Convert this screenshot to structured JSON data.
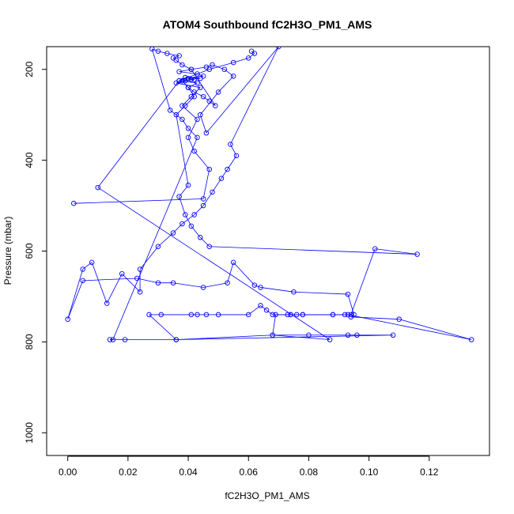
{
  "chart_data": {
    "type": "scatter",
    "title": "ATOM4 Southbound fC2H3O_PM1_AMS",
    "xlabel": "fC2H3O_PM1_AMS",
    "ylabel": "Pressure (mbar)",
    "xlim": [
      -0.007,
      0.14
    ],
    "ylim": [
      1050,
      150
    ],
    "y_reversed": true,
    "x_ticks": [
      0.0,
      0.02,
      0.04,
      0.06,
      0.08,
      0.1,
      0.12
    ],
    "x_tick_labels": [
      "0.00",
      "0.02",
      "0.04",
      "0.06",
      "0.08",
      "0.10",
      "0.12"
    ],
    "y_ticks": [
      200,
      400,
      600,
      800,
      1000
    ],
    "y_tick_labels": [
      "200",
      "400",
      "600",
      "800",
      "1000"
    ],
    "grid": false,
    "color": "#0000ff",
    "marker": "open-circle",
    "connected": true,
    "series": [
      {
        "x": [
          0.002,
          0.045,
          0.047,
          0.042,
          0.04,
          0.043,
          0.038,
          0.041,
          0.044,
          0.036,
          0.039,
          0.042,
          0.04,
          0.045,
          0.043,
          0.037,
          0.041,
          0.046,
          0.048,
          0.052,
          0.055,
          0.05,
          0.044,
          0.046,
          0.07,
          0.054,
          0.056,
          0.053,
          0.051,
          0.048,
          0.045,
          0.042,
          0.038,
          0.035,
          0.03,
          0.024,
          0.024,
          0.018,
          0.013,
          0.008,
          0.005,
          0.0,
          0.005,
          0.023,
          0.03,
          0.035,
          0.045,
          0.053,
          0.055,
          0.062,
          0.064,
          0.075,
          0.093,
          0.095,
          0.094,
          0.11,
          0.134,
          0.093,
          0.088,
          0.078,
          0.074,
          0.069,
          0.068,
          0.08,
          0.093,
          0.096,
          0.108,
          0.036,
          0.027,
          0.031,
          0.041,
          0.043,
          0.046,
          0.05,
          0.06,
          0.064,
          0.066,
          0.068,
          0.073,
          0.074,
          0.076,
          0.078,
          0.088,
          0.092,
          0.094,
          0.102,
          0.116,
          0.047,
          0.044,
          0.041,
          0.039,
          0.037,
          0.04,
          0.036,
          0.039,
          0.042,
          0.04,
          0.038,
          0.041,
          0.044,
          0.039,
          0.037,
          0.043,
          0.04,
          0.042,
          0.045,
          0.047,
          0.049,
          0.041,
          0.038,
          0.036,
          0.035,
          0.037,
          0.033,
          0.03,
          0.028,
          0.034,
          0.038,
          0.04,
          0.043,
          0.015,
          0.014,
          0.019,
          0.036,
          0.068,
          0.087,
          0.01,
          0.037,
          0.047,
          0.055,
          0.06,
          0.062,
          0.061
        ],
        "y": [
          495,
          485,
          420,
          380,
          350,
          310,
          280,
          260,
          240,
          230,
          225,
          222,
          220,
          215,
          210,
          205,
          200,
          195,
          190,
          200,
          215,
          250,
          300,
          340,
          150,
          365,
          390,
          420,
          440,
          470,
          500,
          520,
          540,
          560,
          590,
          640,
          690,
          650,
          715,
          625,
          640,
          750,
          665,
          660,
          670,
          670,
          680,
          670,
          625,
          675,
          680,
          690,
          695,
          740,
          745,
          750,
          795,
          740,
          740,
          740,
          740,
          740,
          785,
          785,
          785,
          785,
          785,
          795,
          740,
          740,
          740,
          740,
          740,
          740,
          740,
          720,
          730,
          740,
          740,
          740,
          740,
          740,
          740,
          740,
          740,
          595,
          607,
          590,
          570,
          545,
          520,
          480,
          455,
          300,
          280,
          260,
          240,
          225,
          222,
          220,
          218,
          225,
          230,
          240,
          250,
          260,
          270,
          280,
          200,
          190,
          180,
          175,
          170,
          165,
          160,
          155,
          290,
          310,
          330,
          350,
          795,
          795,
          795,
          795,
          785,
          795,
          460,
          225,
          200,
          185,
          175,
          165,
          160
        ]
      }
    ]
  }
}
